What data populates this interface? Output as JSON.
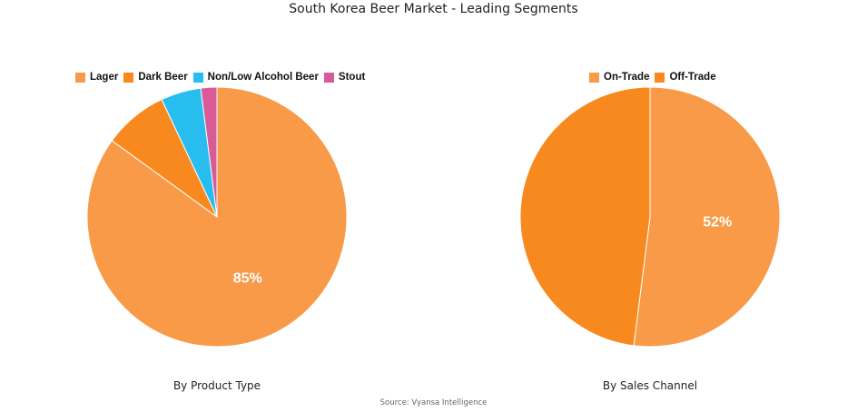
{
  "title": "South Korea Beer Market - Leading Segments",
  "source": "Source: Vyansa Intelligence",
  "chart_data": [
    {
      "type": "pie",
      "caption": "By Product Type",
      "legend_position": "top",
      "start_angle": "12 o'clock, clockwise",
      "categories": [
        "Lager",
        "Dark Beer",
        "Non/Low Alcohol Beer",
        "Stout"
      ],
      "values": [
        85,
        8,
        5,
        2
      ],
      "colors": [
        "#F89A48",
        "#F7891F",
        "#28BDEF",
        "#D85A98"
      ],
      "value_labels": [
        "85%",
        "",
        "",
        ""
      ]
    },
    {
      "type": "pie",
      "caption": "By Sales Channel",
      "legend_position": "top",
      "start_angle": "12 o'clock, clockwise",
      "categories": [
        "On-Trade",
        "Off-Trade"
      ],
      "values": [
        52,
        48
      ],
      "colors": [
        "#F89A48",
        "#F7891F"
      ],
      "value_labels": [
        "52%",
        ""
      ]
    }
  ]
}
